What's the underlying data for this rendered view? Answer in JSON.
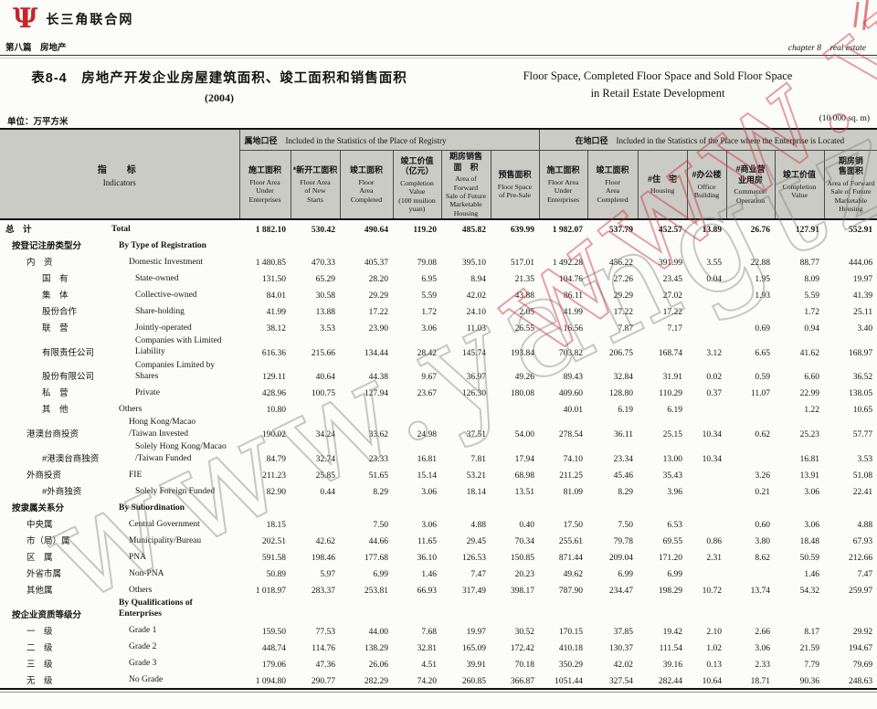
{
  "site": {
    "logo_text": "长三角联合网"
  },
  "chapter": {
    "zh": "第八篇　房地产",
    "en": "chapter 8　real estate"
  },
  "title": {
    "zh": "表8-4　房地产开发企业房屋建筑面积、竣工面积和销售面积",
    "year": "(2004)",
    "en_line1": "Floor Space, Completed Floor Space and Sold Floor Space",
    "en_line2": "in Retail Estate Development"
  },
  "units": {
    "zh": "单位：万平方米",
    "en": "(10 000 sq. m)"
  },
  "watermark": {
    "text": "www.yangtze.org.",
    "gray": "#7d7d7d",
    "red": "#ca2e38"
  },
  "table": {
    "indicator_header": {
      "zh": "指　标",
      "en": "Indicators"
    },
    "groups": [
      {
        "zh": "属地口径",
        "en": "Included in the Statistics of the Place of Registry",
        "span": 6
      },
      {
        "zh": "在地口径",
        "en": "Included in the Statistics of the Place where the Enterprise is Located",
        "span": 7
      }
    ],
    "columns": [
      {
        "zh": "施工面积",
        "en": "Floor Area\nUnder\nEnterprises"
      },
      {
        "zh": "*新开工面积",
        "en": "Floor Area\nof New\nStarts"
      },
      {
        "zh": "竣工面积",
        "en": "Floor\nArea\nCompleted"
      },
      {
        "zh": "竣工价值\n（亿元）",
        "en": "Completion\nValue\n(100 muilion\nyuan)"
      },
      {
        "zh": "期房销售\n面　积",
        "en": "Area of Forward\nSale of Future\nMarketable\nHousing"
      },
      {
        "zh": "预售面积",
        "en": "Floor Space\nof Pre-Sale"
      },
      {
        "zh": "施工面积",
        "en": "Floor Area\nUnder\nEnterprises"
      },
      {
        "zh": "竣工面积",
        "en": "Floor\nArea\nCompleted"
      },
      {
        "zh": "#住　宅",
        "en": "Housing"
      },
      {
        "zh": "#办公楼",
        "en": "Office\nBuilding"
      },
      {
        "zh": "#商业营\n业用房",
        "en": "Commerce/\nOperation"
      },
      {
        "zh": "竣工价值",
        "en": "Completion\nValue"
      },
      {
        "zh": "期房销\n售面积",
        "en": "Area of Forward\nSale of Future\nMarketable\nHousing"
      }
    ],
    "rows": [
      {
        "zh": "总　计",
        "en": "Total",
        "zlv": 0,
        "elv": 0,
        "bold": true,
        "values": [
          "1 882.10",
          "530.42",
          "490.64",
          "119.20",
          "485.82",
          "639.99",
          "1 982.07",
          "537.79",
          "452.57",
          "13.89",
          "26.76",
          "127.91",
          "552.91"
        ]
      },
      {
        "zh": "按登记注册类型分",
        "en": "By Type of Registration",
        "zlv": 1,
        "elv": 1,
        "bold": true,
        "values": [
          "",
          "",
          "",
          "",
          "",
          "",
          "",
          "",
          "",
          "",
          "",
          "",
          ""
        ]
      },
      {
        "zh": "内　资",
        "en": "Domestic Investment",
        "zlv": 2,
        "elv": 2,
        "bold": false,
        "values": [
          "1 480.85",
          "470.33",
          "405.37",
          "79.08",
          "395.10",
          "517.01",
          "1 492.28",
          "456.22",
          "391.99",
          "3.55",
          "22.88",
          "88.77",
          "444.06"
        ]
      },
      {
        "zh": "国　有",
        "en": "State-owned",
        "zlv": 3,
        "elv": 3,
        "bold": false,
        "values": [
          "131.50",
          "65.29",
          "28.20",
          "6.95",
          "8.94",
          "21.35",
          "104.76",
          "27.26",
          "23.45",
          "0.04",
          "1.95",
          "8.09",
          "19.97"
        ]
      },
      {
        "zh": "集　体",
        "en": "Collective-owned",
        "zlv": 3,
        "elv": 3,
        "bold": false,
        "values": [
          "84.01",
          "30.58",
          "29.29",
          "5.59",
          "42.02",
          "43.88",
          "86.11",
          "29.29",
          "27.02",
          "",
          "1.93",
          "5.59",
          "41.39"
        ]
      },
      {
        "zh": "股份合作",
        "en": "Share-holding",
        "zlv": 3,
        "elv": 3,
        "bold": false,
        "values": [
          "41.99",
          "13.88",
          "17.22",
          "1.72",
          "24.10",
          "2.05",
          "41.99",
          "17.22",
          "17.22",
          "",
          "",
          "1.72",
          "25.11"
        ]
      },
      {
        "zh": "联　营",
        "en": "Jointly-operated",
        "zlv": 3,
        "elv": 3,
        "bold": false,
        "values": [
          "38.12",
          "3.53",
          "23.90",
          "3.06",
          "11.03",
          "26.55",
          "16.56",
          "7.87",
          "7.17",
          "",
          "0.69",
          "0.94",
          "3.40"
        ]
      },
      {
        "zh": "有限责任公司",
        "en": "Companies with Limited\nLiability",
        "zlv": 3,
        "elv": 3,
        "bold": false,
        "values": [
          "616.36",
          "215.66",
          "134.44",
          "28.42",
          "145.74",
          "193.84",
          "703.82",
          "206.75",
          "168.74",
          "3.12",
          "6.65",
          "41.62",
          "168.97"
        ]
      },
      {
        "zh": "股份有限公司",
        "en": "Companies Limited by\nShares",
        "zlv": 3,
        "elv": 3,
        "bold": false,
        "values": [
          "129.11",
          "40.64",
          "44.38",
          "9.67",
          "36.97",
          "49.26",
          "89.43",
          "32.84",
          "31.91",
          "0.02",
          "0.59",
          "6.60",
          "36.52"
        ]
      },
      {
        "zh": "私　营",
        "en": "Private",
        "zlv": 3,
        "elv": 3,
        "bold": false,
        "values": [
          "428.96",
          "100.75",
          "127.94",
          "23.67",
          "126.30",
          "180.08",
          "409.60",
          "128.80",
          "110.29",
          "0.37",
          "11.07",
          "22.99",
          "138.05"
        ]
      },
      {
        "zh": "其　他",
        "en": "Others",
        "zlv": 3,
        "elv": 1,
        "bold": false,
        "values": [
          "10.80",
          "",
          "",
          "",
          "",
          "",
          "40.01",
          "6.19",
          "6.19",
          "",
          "",
          "1.22",
          "10.65"
        ]
      },
      {
        "zh": "港澳台商投资",
        "en": "Hong Kong/Macao\n/Taiwan Invested",
        "zlv": 2,
        "elv": 2,
        "bold": false,
        "values": [
          "190.02",
          "34.24",
          "33.62",
          "24.98",
          "37.51",
          "54.00",
          "278.54",
          "36.11",
          "25.15",
          "10.34",
          "0.62",
          "25.23",
          "57.77"
        ]
      },
      {
        "zh": "#港澳台商独资",
        "en": "Solely Hong Kong/Macao\n/Taiwan Funded",
        "zlv": 3,
        "elv": 3,
        "bold": false,
        "values": [
          "84.79",
          "32.74",
          "23.33",
          "16.81",
          "7.81",
          "17.94",
          "74.10",
          "23.34",
          "13.00",
          "10.34",
          "",
          "16.81",
          "3.53"
        ]
      },
      {
        "zh": "外商投资",
        "en": "FIE",
        "zlv": 2,
        "elv": 2,
        "bold": false,
        "values": [
          "211.23",
          "25.85",
          "51.65",
          "15.14",
          "53.21",
          "68.98",
          "211.25",
          "45.46",
          "35.43",
          "",
          "3.26",
          "13.91",
          "51.08"
        ]
      },
      {
        "zh": "#外商独资",
        "en": "Solely Foreign Funded",
        "zlv": 3,
        "elv": 3,
        "bold": false,
        "values": [
          "82.90",
          "0.44",
          "8.29",
          "3.06",
          "18.14",
          "13.51",
          "81.09",
          "8.29",
          "3.96",
          "",
          "0.21",
          "3.06",
          "22.41"
        ]
      },
      {
        "zh": "按隶属关系分",
        "en": "By Subordination",
        "zlv": 1,
        "elv": 1,
        "bold": true,
        "values": [
          "",
          "",
          "",
          "",
          "",
          "",
          "",
          "",
          "",
          "",
          "",
          "",
          ""
        ]
      },
      {
        "zh": "中央属",
        "en": "Central Government",
        "zlv": 2,
        "elv": 2,
        "bold": false,
        "values": [
          "18.15",
          "",
          "7.50",
          "3.06",
          "4.88",
          "0.40",
          "17.50",
          "7.50",
          "6.53",
          "",
          "0.60",
          "3.06",
          "4.88"
        ]
      },
      {
        "zh": "市（局）属",
        "en": "Municipality/Bureau",
        "zlv": 2,
        "elv": 2,
        "bold": false,
        "values": [
          "202.51",
          "42.62",
          "44.66",
          "11.65",
          "29.45",
          "70.34",
          "255.61",
          "79.78",
          "69.55",
          "0.86",
          "3.80",
          "18.48",
          "67.93"
        ]
      },
      {
        "zh": "区　属",
        "en": "PNA",
        "zlv": 2,
        "elv": 2,
        "bold": false,
        "values": [
          "591.58",
          "198.46",
          "177.68",
          "36.10",
          "126.53",
          "150.85",
          "871.44",
          "209.04",
          "171.20",
          "2.31",
          "8.62",
          "50.59",
          "212.66"
        ]
      },
      {
        "zh": "外省市属",
        "en": "Non-PNA",
        "zlv": 2,
        "elv": 2,
        "bold": false,
        "values": [
          "50.89",
          "5.97",
          "6.99",
          "1.46",
          "7.47",
          "20.23",
          "49.62",
          "6.99",
          "6.99",
          "",
          "",
          "1.46",
          "7.47"
        ]
      },
      {
        "zh": "其他属",
        "en": "Others",
        "zlv": 2,
        "elv": 2,
        "bold": false,
        "values": [
          "1 018.97",
          "283.37",
          "253.81",
          "66.93",
          "317.49",
          "398.17",
          "787.90",
          "234.47",
          "198.29",
          "10.72",
          "13.74",
          "54.32",
          "259.97"
        ]
      },
      {
        "zh": "按企业资质等级分",
        "en": "By Qualifications of\nEnterprises",
        "zlv": 1,
        "elv": 1,
        "bold": true,
        "values": [
          "",
          "",
          "",
          "",
          "",
          "",
          "",
          "",
          "",
          "",
          "",
          "",
          ""
        ]
      },
      {
        "zh": "一　级",
        "en": "Grade 1",
        "zlv": 2,
        "elv": 2,
        "bold": false,
        "values": [
          "159.50",
          "77.53",
          "44.00",
          "7.68",
          "19.97",
          "30.52",
          "170.15",
          "37.85",
          "19.42",
          "2.10",
          "2.66",
          "8.17",
          "29.92"
        ]
      },
      {
        "zh": "二　级",
        "en": "Grade 2",
        "zlv": 2,
        "elv": 2,
        "bold": false,
        "values": [
          "448.74",
          "114.76",
          "138.29",
          "32.81",
          "165.09",
          "172.42",
          "410.18",
          "130.37",
          "111.54",
          "1.02",
          "3.06",
          "21.59",
          "194.67"
        ]
      },
      {
        "zh": "三　级",
        "en": "Grade 3",
        "zlv": 2,
        "elv": 2,
        "bold": false,
        "values": [
          "179.06",
          "47.36",
          "26.06",
          "4.51",
          "39.91",
          "70.18",
          "350.29",
          "42.02",
          "39.16",
          "0.13",
          "2.33",
          "7.79",
          "79.69"
        ]
      },
      {
        "zh": "无　级",
        "en": "No Grade",
        "zlv": 2,
        "elv": 2,
        "bold": false,
        "values": [
          "1 094.80",
          "290.77",
          "282.29",
          "74.20",
          "260.85",
          "366.87",
          "1051.44",
          "327.54",
          "282.44",
          "10.64",
          "18.71",
          "90.36",
          "248.63"
        ]
      }
    ]
  }
}
